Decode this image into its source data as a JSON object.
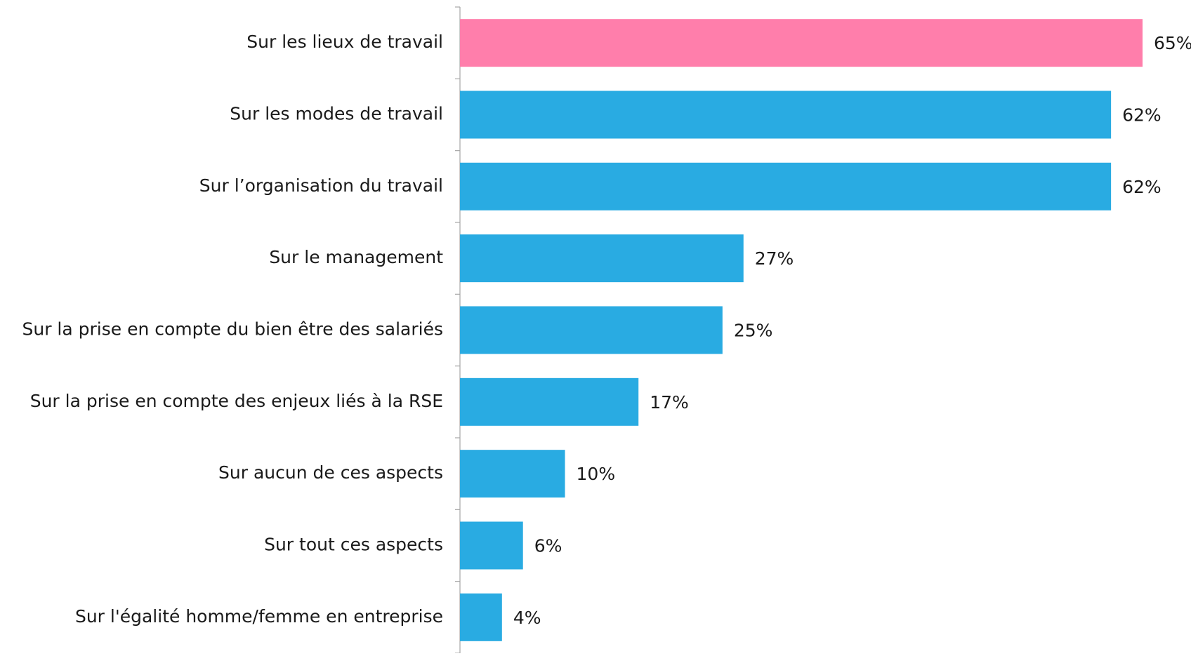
{
  "chart_data": {
    "type": "hbar",
    "categories": [
      "Sur les lieux de travail",
      "Sur les modes de travail",
      "Sur l’organisation du travail",
      "Sur le management",
      "Sur la prise en compte du bien être des salariés",
      "Sur la prise en compte des enjeux liés à la RSE",
      "Sur aucun de ces aspects",
      "Sur tout ces aspects",
      "Sur l'égalité homme/femme en entreprise"
    ],
    "values": [
      65,
      62,
      62,
      27,
      25,
      17,
      10,
      6,
      4
    ],
    "value_labels": [
      "65%",
      "62%",
      "62%",
      "27%",
      "25%",
      "17%",
      "10%",
      "6%",
      "4%"
    ],
    "colors": [
      "#ff7eab",
      "#29abe2",
      "#29abe2",
      "#29abe2",
      "#29abe2",
      "#29abe2",
      "#29abe2",
      "#29abe2",
      "#29abe2"
    ]
  }
}
